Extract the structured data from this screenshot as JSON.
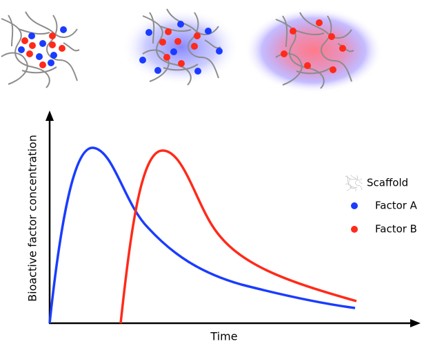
{
  "axes": {
    "y_label": "Bioactive factor concentration",
    "x_label": "Time"
  },
  "legend": [
    {
      "label": "Scaffold"
    },
    {
      "label": "Factor A"
    },
    {
      "label": "Factor B"
    }
  ]
}
